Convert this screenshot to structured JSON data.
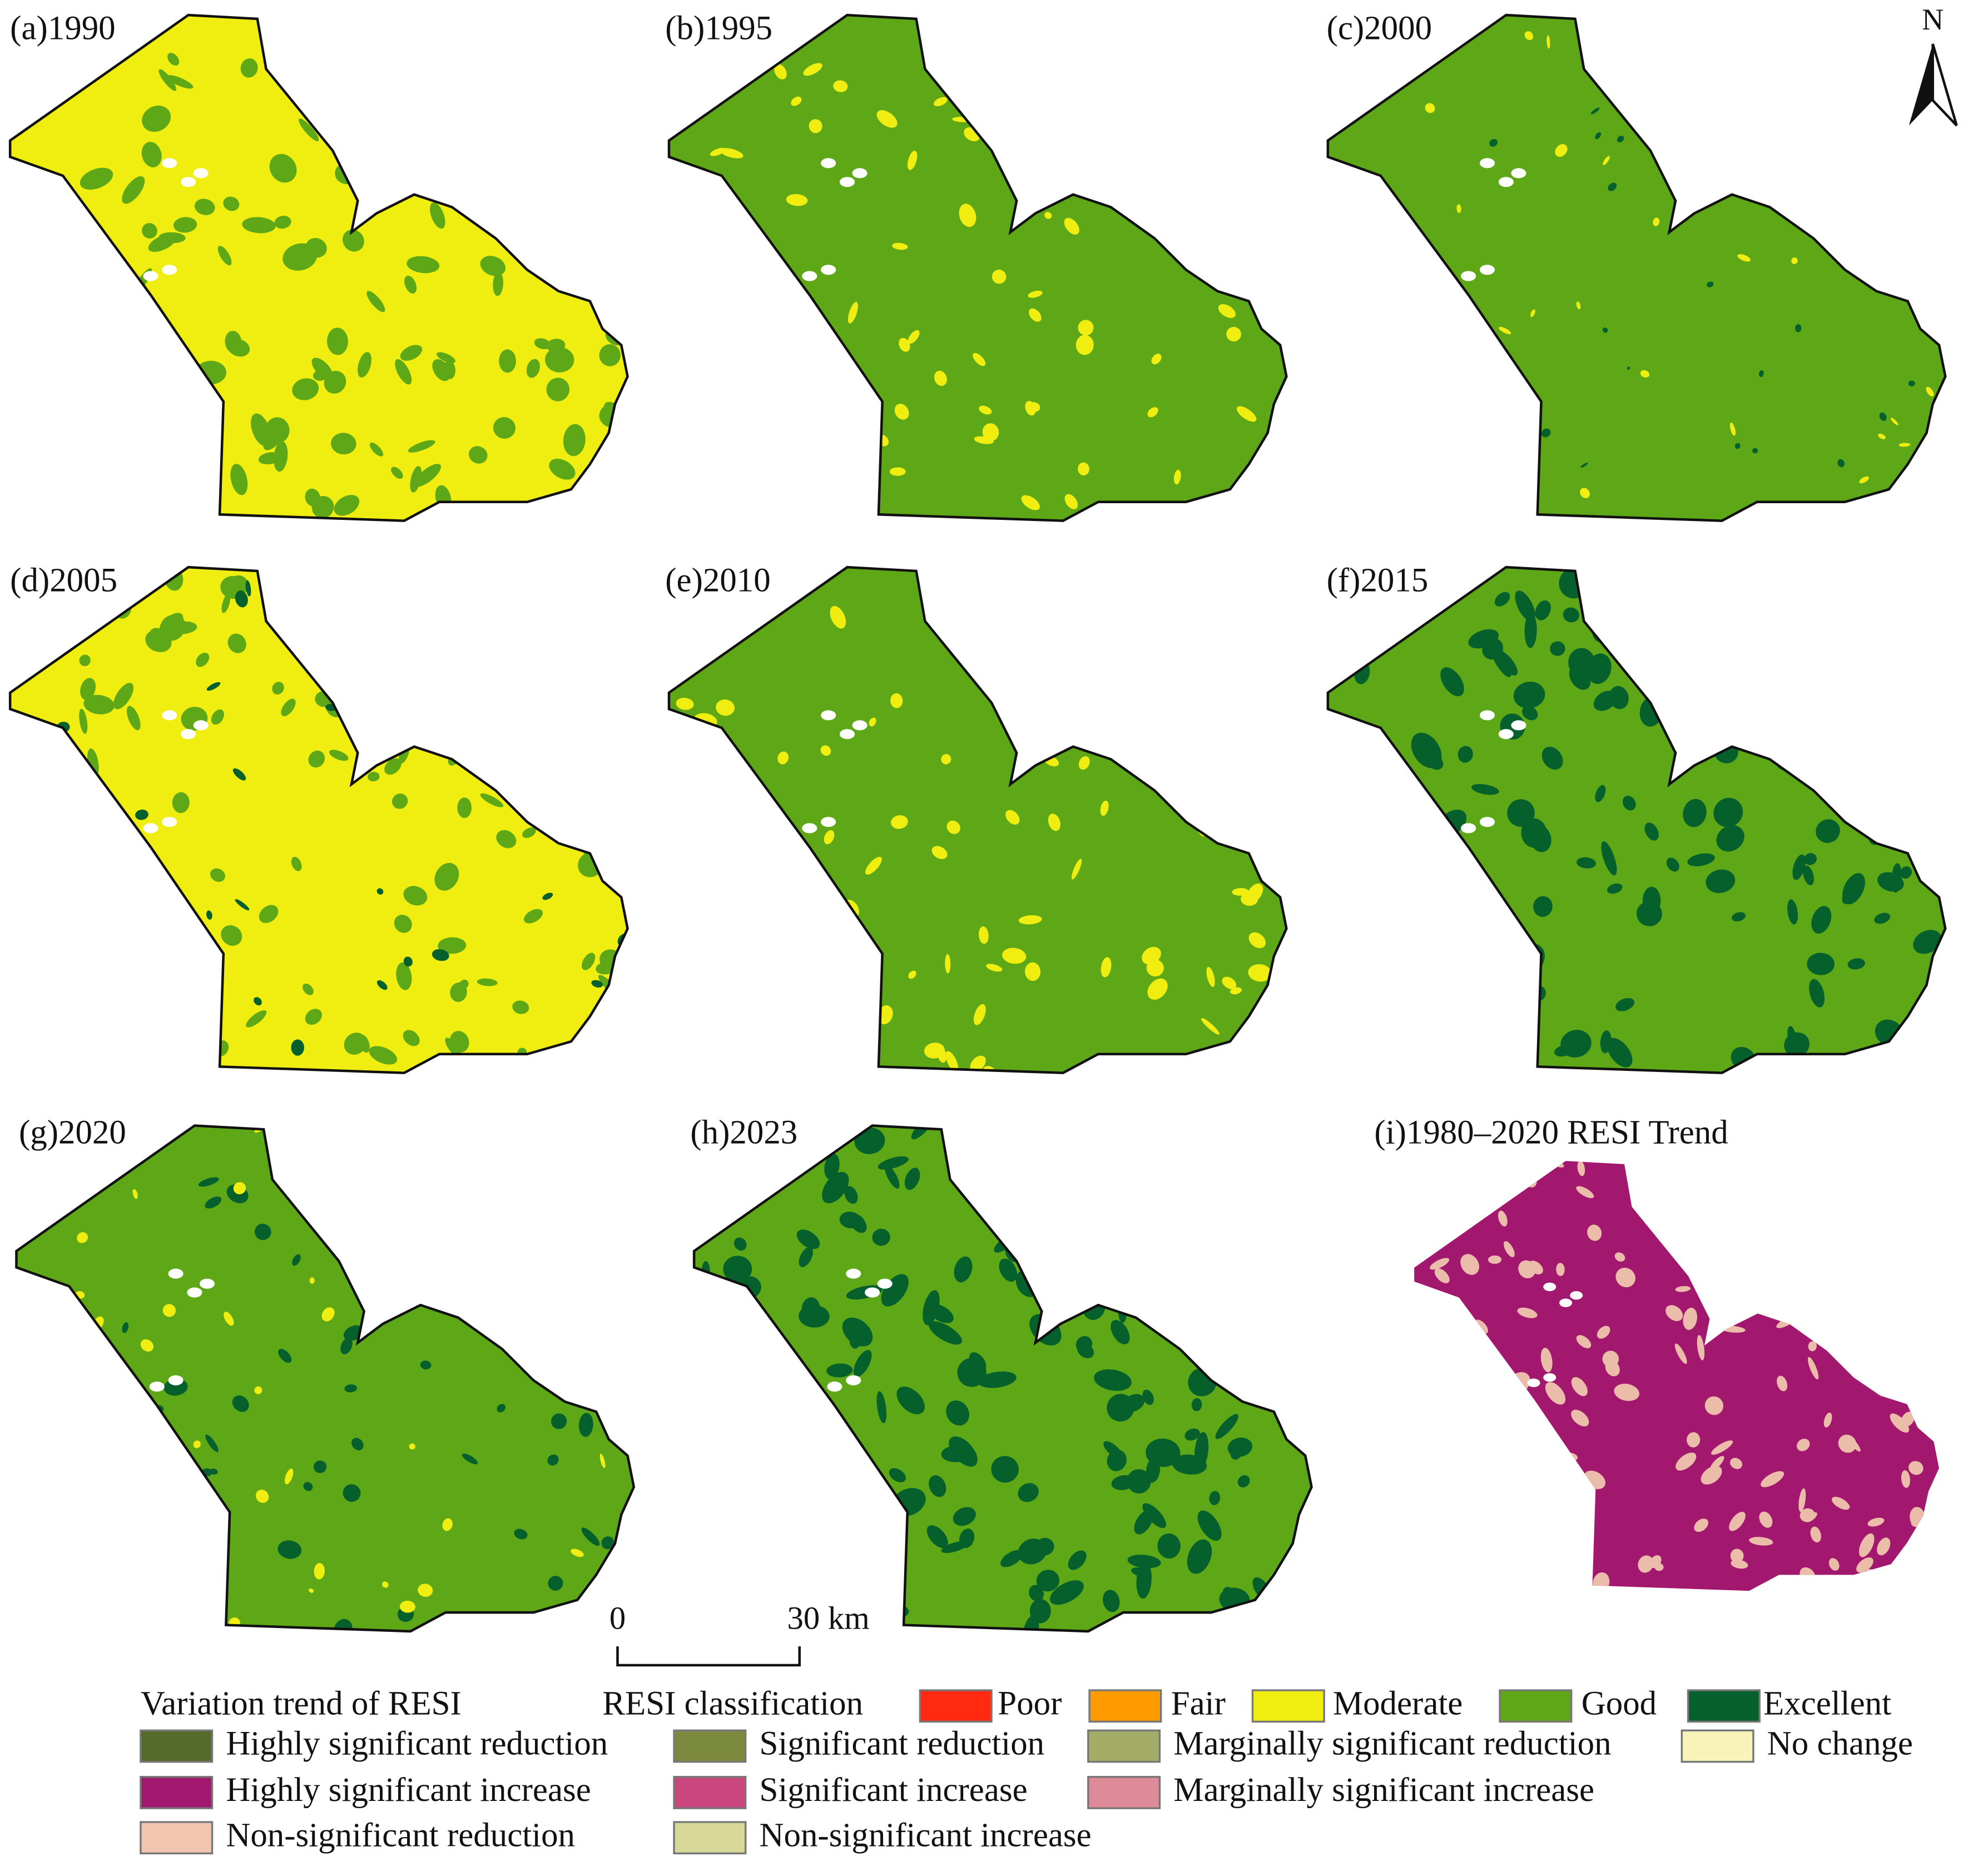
{
  "panels": [
    {
      "label": "(a)1990"
    },
    {
      "label": "(b)1995"
    },
    {
      "label": "(c)2000"
    },
    {
      "label": "(d)2005"
    },
    {
      "label": "(e)2010"
    },
    {
      "label": "(f)2015"
    },
    {
      "label": "(g)2020"
    },
    {
      "label": "(h)2023"
    },
    {
      "label": "(i)1980–2020 RESI Trend"
    }
  ],
  "north": "N",
  "scale_bar": {
    "start": "0",
    "end": "30 km"
  },
  "legend": {
    "trend_title": "Variation trend of RESI",
    "classification_title": "RESI classification",
    "classification": [
      {
        "label": "Poor",
        "color": "#ff2a10"
      },
      {
        "label": "Fair",
        "color": "#ff9a00"
      },
      {
        "label": "Moderate",
        "color": "#f0ee10"
      },
      {
        "label": "Good",
        "color": "#5ea818"
      },
      {
        "label": "Excellent",
        "color": "#06602c"
      }
    ],
    "trend": [
      {
        "label": "Highly significant reduction",
        "color": "#556b2a"
      },
      {
        "label": "Significant reduction",
        "color": "#7b8a3e"
      },
      {
        "label": "Marginally significant reduction",
        "color": "#a3ad68"
      },
      {
        "label": "No change",
        "color": "#f8f3b8"
      },
      {
        "label": "Highly significant increase",
        "color": "#a3186f"
      },
      {
        "label": "Significant increase",
        "color": "#c9467f"
      },
      {
        "label": "Marginally significant increase",
        "color": "#df8a98"
      },
      {
        "label": "Non-significant reduction",
        "color": "#f1c5b0"
      },
      {
        "label": "Non-significant increase",
        "color": "#d7d89a"
      }
    ]
  }
}
